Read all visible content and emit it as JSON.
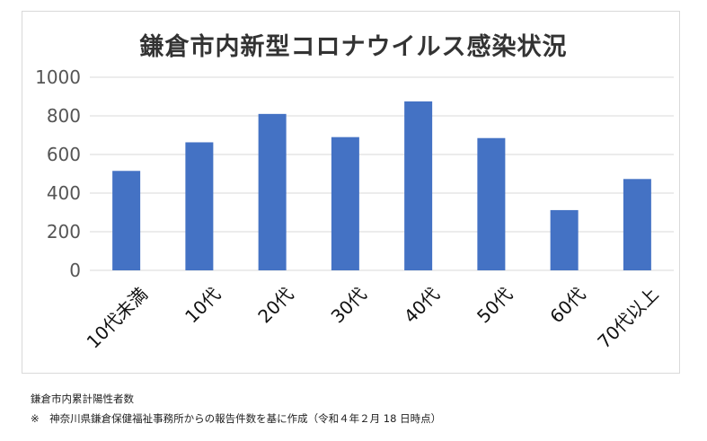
{
  "chart_data": {
    "type": "bar",
    "title": "鎌倉市内新型コロナウイルス感染状況",
    "categories": [
      "10代未満",
      "10代",
      "20代",
      "30代",
      "40代",
      "50代",
      "60代",
      "70代以上"
    ],
    "values": [
      515,
      663,
      810,
      690,
      875,
      685,
      312,
      473
    ],
    "yticks": [
      "0",
      "200",
      "400",
      "600",
      "800",
      "1000"
    ],
    "ylim": [
      0,
      1000
    ],
    "grid": true,
    "bar_color": "#4472c4",
    "grid_color": "#d9d9d9"
  },
  "notes": {
    "line1": "鎌倉市内累計陽性者数",
    "line2": "※　神奈川県鎌倉保健福祉事務所からの報告件数を基に作成（令和４年２月 18 日時点）"
  }
}
